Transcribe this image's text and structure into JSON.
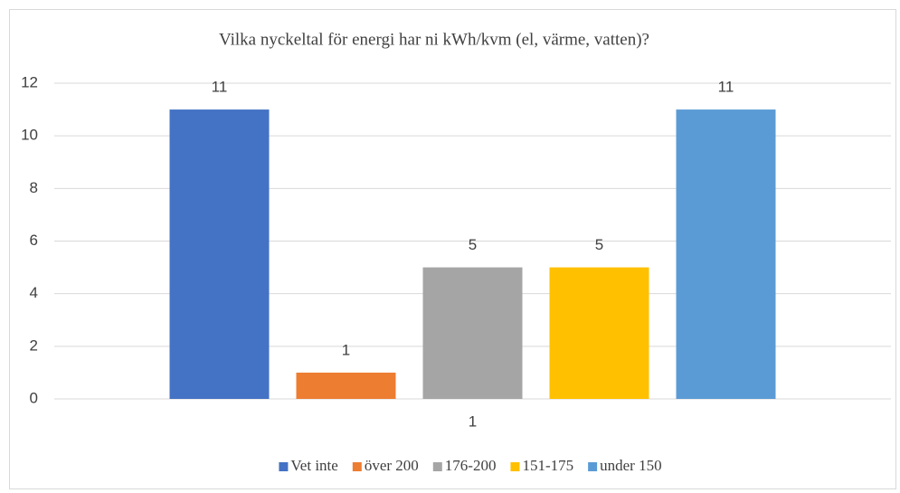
{
  "chart_data": {
    "type": "bar",
    "title": "Vilka nyckeltal för energi har ni kWh/kvm (el, värme, vatten)?",
    "categories": [
      "1"
    ],
    "series": [
      {
        "name": "Vet inte",
        "color": "#4472c4",
        "values": [
          11
        ]
      },
      {
        "name": "över 200",
        "color": "#ed7d31",
        "values": [
          1
        ]
      },
      {
        "name": "176-200",
        "color": "#a5a5a5",
        "values": [
          5
        ]
      },
      {
        "name": "151-175",
        "color": "#ffc000",
        "values": [
          5
        ]
      },
      {
        "name": "under 150",
        "color": "#5b9bd5",
        "values": [
          11
        ]
      }
    ],
    "ylim": [
      0,
      12
    ],
    "yticks": [
      0,
      2,
      4,
      6,
      8,
      10,
      12
    ],
    "grid": true,
    "legend": "bottom"
  }
}
